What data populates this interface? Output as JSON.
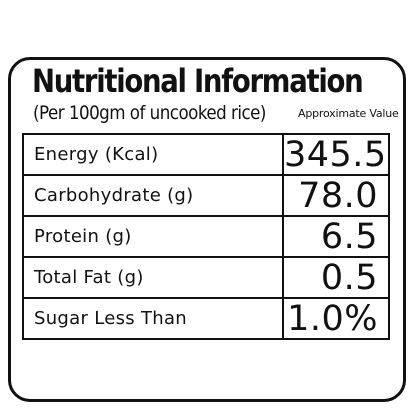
{
  "title": "Nutritional Information",
  "subtitle": "(Per 100gm of uncooked rice)",
  "note": "Approximate Value",
  "rows": [
    {
      "label": "Energy (Kcal)",
      "value": "345.5"
    },
    {
      "label": "Carbohydrate (g)",
      "value": "78.0"
    },
    {
      "label": "Protein (g)",
      "value": "6.5"
    },
    {
      "label": "Total Fat (g)",
      "value": "0.5"
    },
    {
      "label": "Sugar Less Than",
      "value": "1.0%"
    }
  ]
}
